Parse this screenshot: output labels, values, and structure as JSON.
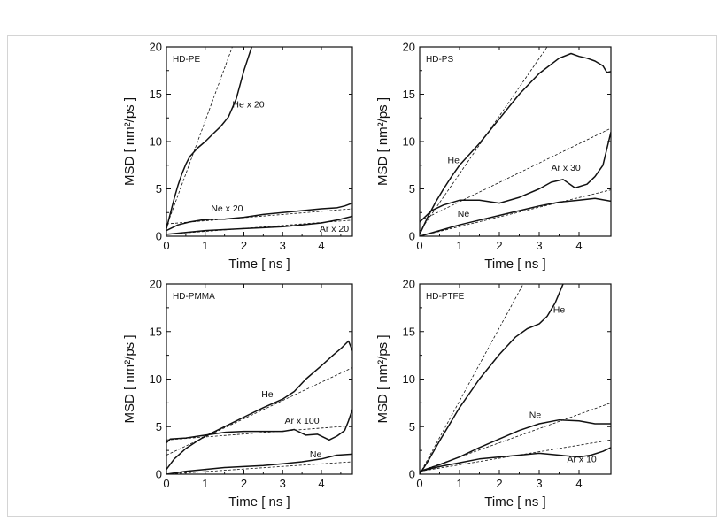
{
  "chart_data": [
    {
      "type": "line",
      "title": "HD-PE",
      "xlabel": "Time [ ns ]",
      "ylabel": "MSD [ nm²/ps ]",
      "xlim": [
        0,
        4.8
      ],
      "ylim": [
        0,
        20
      ],
      "xticks": [
        0,
        1,
        2,
        3,
        4
      ],
      "yticks": [
        0,
        5,
        10,
        15,
        20
      ],
      "series": [
        {
          "name": "He x 20",
          "style": "solid",
          "x": [
            0,
            0.1,
            0.2,
            0.3,
            0.4,
            0.5,
            0.6,
            0.8,
            1.0,
            1.2,
            1.4,
            1.6,
            1.8,
            2.0,
            2.2
          ],
          "y": [
            0.8,
            2.4,
            4.0,
            5.4,
            6.6,
            7.6,
            8.4,
            9.3,
            10.0,
            10.8,
            11.6,
            12.6,
            14.5,
            17.5,
            20.0
          ]
        },
        {
          "name": "He x 20 fit",
          "style": "dashed",
          "x": [
            0,
            1.7
          ],
          "y": [
            1.0,
            20.0
          ]
        },
        {
          "name": "Ne x 20",
          "style": "solid",
          "x": [
            0,
            0.3,
            0.6,
            0.9,
            1.2,
            1.5,
            2.0,
            2.5,
            3.0,
            3.5,
            4.0,
            4.4,
            4.6,
            4.8
          ],
          "y": [
            0.6,
            1.2,
            1.5,
            1.7,
            1.8,
            1.8,
            2.0,
            2.3,
            2.5,
            2.7,
            2.9,
            3.0,
            3.2,
            3.5
          ]
        },
        {
          "name": "Ne x 20 fit",
          "style": "dashed",
          "x": [
            0,
            4.8
          ],
          "y": [
            1.3,
            2.9
          ]
        },
        {
          "name": "Ar x 20",
          "style": "solid",
          "x": [
            0,
            0.5,
            1.0,
            1.5,
            2.0,
            2.5,
            3.0,
            3.5,
            4.0,
            4.4,
            4.8
          ],
          "y": [
            0.2,
            0.4,
            0.6,
            0.7,
            0.8,
            0.9,
            1.0,
            1.2,
            1.4,
            1.7,
            2.1
          ]
        },
        {
          "name": "Ar x 20 fit",
          "style": "dashed",
          "x": [
            0,
            4.8
          ],
          "y": [
            0.2,
            1.7
          ]
        }
      ],
      "labels": [
        {
          "text": "He x 20",
          "x": 1.7,
          "y": 13.6
        },
        {
          "text": "Ne x 20",
          "x": 1.15,
          "y": 2.6
        },
        {
          "text": "Ar x 20",
          "x": 3.95,
          "y": 0.45
        }
      ]
    },
    {
      "type": "line",
      "title": "HD-PS",
      "xlabel": "Time [ ns ]",
      "ylabel": "MSD [ nm²/ps ]",
      "xlim": [
        0,
        4.8
      ],
      "ylim": [
        0,
        20
      ],
      "xticks": [
        0,
        1,
        2,
        3,
        4
      ],
      "yticks": [
        0,
        5,
        10,
        15,
        20
      ],
      "series": [
        {
          "name": "He",
          "style": "solid",
          "x": [
            0,
            0.2,
            0.4,
            0.6,
            0.8,
            1.0,
            1.5,
            2.0,
            2.5,
            3.0,
            3.5,
            3.8,
            4.0,
            4.2,
            4.4,
            4.6,
            4.7,
            4.8
          ],
          "y": [
            0.2,
            2.0,
            3.6,
            5.0,
            6.3,
            7.5,
            9.8,
            12.4,
            15.0,
            17.2,
            18.8,
            19.3,
            19.0,
            18.8,
            18.5,
            18.0,
            17.3,
            17.4
          ]
        },
        {
          "name": "He fit",
          "style": "dashed",
          "x": [
            0,
            3.2
          ],
          "y": [
            0.5,
            20.0
          ]
        },
        {
          "name": "Ar x 30",
          "style": "solid",
          "x": [
            0,
            0.3,
            0.6,
            1.0,
            1.5,
            2.0,
            2.5,
            3.0,
            3.3,
            3.6,
            3.9,
            4.2,
            4.4,
            4.6,
            4.8
          ],
          "y": [
            1.5,
            2.7,
            3.3,
            3.8,
            3.8,
            3.5,
            4.1,
            5.0,
            5.7,
            6.0,
            5.1,
            5.5,
            6.3,
            7.5,
            11.0
          ]
        },
        {
          "name": "Ar x 30 fit",
          "style": "dashed",
          "x": [
            0,
            4.8
          ],
          "y": [
            1.6,
            11.4
          ]
        },
        {
          "name": "Ne",
          "style": "solid",
          "x": [
            0,
            0.5,
            1.0,
            1.5,
            2.0,
            2.5,
            3.0,
            3.5,
            4.0,
            4.4,
            4.8
          ],
          "y": [
            0.0,
            0.6,
            1.2,
            1.7,
            2.2,
            2.7,
            3.2,
            3.6,
            3.8,
            4.0,
            3.7
          ]
        },
        {
          "name": "Ne fit",
          "style": "dashed",
          "x": [
            0,
            4.8
          ],
          "y": [
            0.0,
            4.9
          ]
        }
      ],
      "labels": [
        {
          "text": "He",
          "x": 0.7,
          "y": 7.7
        },
        {
          "text": "Ar x 30",
          "x": 3.3,
          "y": 6.9
        },
        {
          "text": "Ne",
          "x": 0.95,
          "y": 2.05
        }
      ]
    },
    {
      "type": "line",
      "title": "HD-PMMA",
      "xlabel": "Time [ ns ]",
      "ylabel": "MSD [ nm²/ps ]",
      "xlim": [
        0,
        4.8
      ],
      "ylim": [
        0,
        20
      ],
      "xticks": [
        0,
        1,
        2,
        3,
        4
      ],
      "yticks": [
        0,
        5,
        10,
        15,
        20
      ],
      "series": [
        {
          "name": "He",
          "style": "solid",
          "x": [
            0,
            0.2,
            0.5,
            0.8,
            1.0,
            1.5,
            2.0,
            2.5,
            3.0,
            3.3,
            3.6,
            4.0,
            4.3,
            4.5,
            4.7,
            4.8
          ],
          "y": [
            0.5,
            1.6,
            2.7,
            3.5,
            4.0,
            5.0,
            6.0,
            7.0,
            7.9,
            8.7,
            10.0,
            11.4,
            12.5,
            13.2,
            14.0,
            13.0
          ]
        },
        {
          "name": "He fit",
          "style": "dashed",
          "x": [
            0,
            4.8
          ],
          "y": [
            2.0,
            11.2
          ]
        },
        {
          "name": "Ar x 100",
          "style": "solid",
          "x": [
            0,
            0.1,
            0.5,
            1.0,
            1.5,
            2.0,
            2.5,
            3.0,
            3.3,
            3.6,
            3.9,
            4.2,
            4.4,
            4.6,
            4.7,
            4.8
          ],
          "y": [
            3.3,
            3.7,
            3.8,
            4.1,
            4.4,
            4.5,
            4.5,
            4.5,
            4.7,
            4.1,
            4.2,
            3.6,
            4.0,
            4.6,
            5.6,
            6.8
          ]
        },
        {
          "name": "Ar x 100 fit",
          "style": "dashed",
          "x": [
            0,
            4.8
          ],
          "y": [
            3.6,
            5.1
          ]
        },
        {
          "name": "Ne",
          "style": "solid",
          "x": [
            0,
            0.5,
            1.0,
            1.5,
            2.0,
            2.5,
            3.0,
            3.5,
            4.0,
            4.4,
            4.8
          ],
          "y": [
            0.0,
            0.3,
            0.5,
            0.7,
            0.8,
            0.9,
            1.1,
            1.3,
            1.6,
            2.0,
            2.1
          ]
        },
        {
          "name": "Ne fit",
          "style": "dashed",
          "x": [
            0,
            4.8
          ],
          "y": [
            0.0,
            1.3
          ]
        }
      ],
      "labels": [
        {
          "text": "He",
          "x": 2.45,
          "y": 8.1
        },
        {
          "text": "Ar x 100",
          "x": 3.05,
          "y": 5.3
        },
        {
          "text": "Ne",
          "x": 3.7,
          "y": 1.75
        }
      ]
    },
    {
      "type": "line",
      "title": "HD-PTFE",
      "xlabel": "Time [ ns ]",
      "ylabel": "MSD [ nm²/ps ]",
      "xlim": [
        0,
        4.8
      ],
      "ylim": [
        0,
        20
      ],
      "xticks": [
        0,
        1,
        2,
        3,
        4
      ],
      "yticks": [
        0,
        5,
        10,
        15,
        20
      ],
      "series": [
        {
          "name": "He",
          "style": "solid",
          "x": [
            0,
            0.2,
            0.5,
            1.0,
            1.5,
            2.0,
            2.4,
            2.7,
            3.0,
            3.2,
            3.4,
            3.6
          ],
          "y": [
            0.0,
            1.3,
            3.5,
            7.0,
            10.0,
            12.6,
            14.4,
            15.3,
            15.8,
            16.6,
            18.0,
            20.0
          ]
        },
        {
          "name": "He fit",
          "style": "dashed",
          "x": [
            0,
            2.6
          ],
          "y": [
            0.0,
            20.0
          ]
        },
        {
          "name": "Ne",
          "style": "solid",
          "x": [
            0,
            0.5,
            1.0,
            1.5,
            2.0,
            2.5,
            3.0,
            3.5,
            4.0,
            4.4,
            4.8
          ],
          "y": [
            0.3,
            1.0,
            1.8,
            2.8,
            3.7,
            4.6,
            5.3,
            5.7,
            5.6,
            5.3,
            5.3
          ]
        },
        {
          "name": "Ne fit",
          "style": "dashed",
          "x": [
            0,
            4.8
          ],
          "y": [
            0.3,
            7.5
          ]
        },
        {
          "name": "Ar x 10",
          "style": "solid",
          "x": [
            0,
            0.5,
            1.0,
            1.5,
            2.0,
            2.5,
            3.0,
            3.5,
            4.0,
            4.3,
            4.6,
            4.8
          ],
          "y": [
            0.3,
            0.8,
            1.2,
            1.6,
            1.8,
            2.0,
            2.2,
            2.0,
            1.8,
            2.0,
            2.4,
            2.8
          ]
        },
        {
          "name": "Ar x 10 fit",
          "style": "dashed",
          "x": [
            0,
            4.8
          ],
          "y": [
            0.3,
            3.6
          ]
        }
      ],
      "labels": [
        {
          "text": "He",
          "x": 3.35,
          "y": 17.0
        },
        {
          "text": "Ne",
          "x": 2.75,
          "y": 5.9
        },
        {
          "text": "Ar x 10",
          "x": 3.7,
          "y": 1.25
        }
      ]
    }
  ]
}
